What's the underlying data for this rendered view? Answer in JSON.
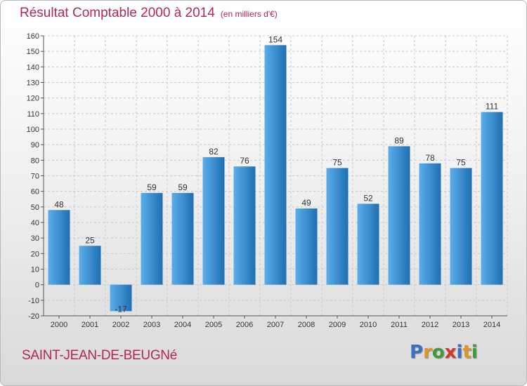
{
  "title": "Résultat Comptable 2000 à 2014",
  "subtitle": "(en milliers d'€)",
  "commune": "SAINT-JEAN-DE-BEUGNé",
  "logo": {
    "letters": [
      "P",
      "r",
      "o",
      "x",
      "i",
      "t",
      "i"
    ],
    "colors": [
      "#3a6fc2",
      "#e0932b",
      "#3f9a3a",
      "#d03a2a",
      "#3a6fc2",
      "#e0932b",
      "#3f9a3a"
    ]
  },
  "colors": {
    "bar_top": "#5aaeea",
    "bar_bottom": "#1f6fb3",
    "title": "#b0285a",
    "grid": "#c8c8c8"
  },
  "chart_data": {
    "type": "bar",
    "title": "Résultat Comptable 2000 à 2014",
    "subtitle": "(en milliers d'€)",
    "xlabel": "",
    "ylabel": "",
    "categories": [
      "2000",
      "2001",
      "2002",
      "2003",
      "2004",
      "2005",
      "2006",
      "2007",
      "2008",
      "2009",
      "2010",
      "2011",
      "2012",
      "2013",
      "2014"
    ],
    "values": [
      48,
      25,
      -17,
      59,
      59,
      82,
      76,
      154,
      49,
      75,
      52,
      89,
      78,
      75,
      111
    ],
    "ylim": [
      -20,
      160
    ],
    "yticks": [
      -20,
      -10,
      0,
      10,
      20,
      30,
      40,
      50,
      60,
      70,
      80,
      90,
      100,
      110,
      120,
      130,
      140,
      150,
      160
    ],
    "grid": "horizontal dashed"
  }
}
